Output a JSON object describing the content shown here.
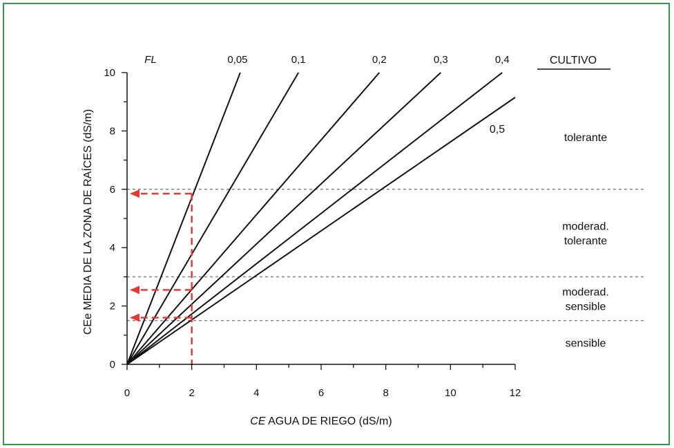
{
  "chart_data": {
    "type": "line",
    "xlabel_italic": "CE",
    "xlabel_rest": " AGUA DE RIEGO (dS/m)",
    "ylabel": "CEe MEDIA DE LA ZONA DE RAÍCES (dS/m)",
    "xlim": [
      0,
      12
    ],
    "ylim": [
      0,
      10
    ],
    "x_ticks": [
      "0",
      "2",
      "4",
      "6",
      "8",
      "10",
      "12"
    ],
    "y_ticks": [
      "0",
      "2",
      "4",
      "6",
      "8",
      "10"
    ],
    "fl_label": "FL",
    "crop_header": "CULTIVO",
    "series": [
      {
        "name": "0,05",
        "x": [
          0,
          3.5
        ],
        "y": [
          0,
          10
        ]
      },
      {
        "name": "0,1",
        "x": [
          0,
          5.3
        ],
        "y": [
          0,
          10
        ]
      },
      {
        "name": "0,2",
        "x": [
          0,
          7.8
        ],
        "y": [
          0,
          10
        ]
      },
      {
        "name": "0,3",
        "x": [
          0,
          9.7
        ],
        "y": [
          0,
          10
        ]
      },
      {
        "name": "0,4",
        "x": [
          0,
          11.6
        ],
        "y": [
          0,
          10
        ]
      },
      {
        "name": "0,5",
        "x": [
          0,
          12
        ],
        "y": [
          0,
          9.15
        ]
      }
    ],
    "thresholds": [
      6,
      3,
      1.5
    ],
    "zones": [
      {
        "lines": [
          "tolerante"
        ],
        "y_center": 7.8
      },
      {
        "lines": [
          "moderad.",
          "tolerante"
        ],
        "y_center": 4.5
      },
      {
        "lines": [
          "moderad.",
          "sensible"
        ],
        "y_center": 2.25
      },
      {
        "lines": [
          "sensible"
        ],
        "y_center": 0.75
      }
    ],
    "example": {
      "x": 2,
      "y_values": [
        5.85,
        2.55,
        1.6
      ],
      "color": "#e53935"
    },
    "colors": {
      "frame": "#2e9a4f",
      "lines": "#111111",
      "threshold": "#888888",
      "example": "#e53935"
    }
  }
}
